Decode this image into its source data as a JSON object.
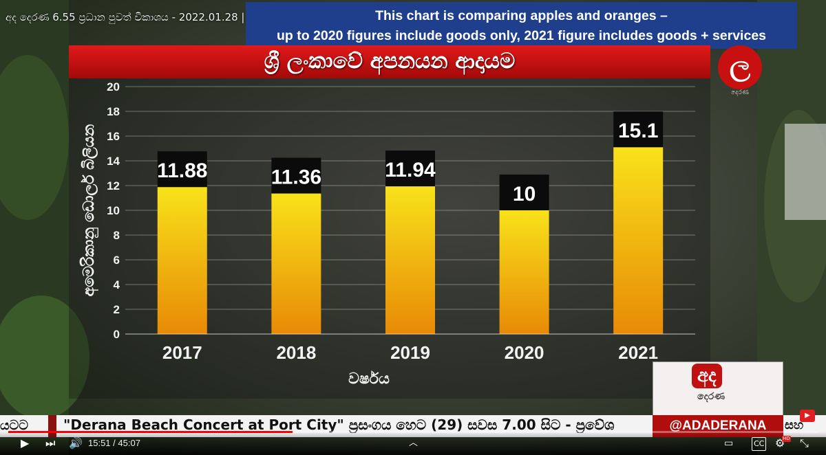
{
  "video": {
    "title": "අද දෙරණ 6.55 ප්‍රධාන පුවත් විකාශය - 2022.01.28 |",
    "time_current": "15:51",
    "time_separator": "/",
    "time_total": "45:07",
    "progress_fraction": 0.351
  },
  "note": {
    "line1": "This chart is comparing apples and oranges –",
    "line2": "up to 2020 figures include goods only, 2021 figure includes goods + services"
  },
  "logo": {
    "glyph": "ල",
    "sub_text": "දෙරණ"
  },
  "chart_data": {
    "type": "bar",
    "title": "ශ්‍රී ලංකාවේ අපනයන ආදායම",
    "xlabel": "වර්ෂය",
    "ylabel": "අමෙරිකානු ඩොලර් බිලියන",
    "categories": [
      "2017",
      "2018",
      "2019",
      "2020",
      "2021"
    ],
    "values": [
      11.88,
      11.36,
      11.94,
      10,
      15.1
    ],
    "data_labels": [
      "11.88",
      "11.36",
      "11.94",
      "10",
      "15.1"
    ],
    "ylim": [
      0,
      20
    ],
    "yticks": [
      "0",
      "2",
      "4",
      "6",
      "8",
      "10",
      "12",
      "14",
      "16",
      "18",
      "20"
    ],
    "grid": true,
    "colors": {
      "bar_top": "#f8e21a",
      "bar_bottom": "#e88a06",
      "label_bg": "#0b0b0b"
    }
  },
  "ticker": {
    "left_text": "යටට",
    "text": "\"Derana Beach Concert at Port City\" ප්‍රසංගය හෙට (29) සවස 7.00 සිට - ප්‍රවේශ",
    "right_text": "සහ",
    "handle": "@ADADERANA",
    "logo_top": "අද",
    "logo_bottom": "දෙරණ"
  },
  "icons": {
    "play": "play-icon",
    "next": "next-icon",
    "volume": "volume-icon",
    "chevron": "chevron-up-icon",
    "miniplayer": "miniplayer-icon",
    "captions": "captions-icon",
    "settings": "settings-icon",
    "fullscreen": "exit-fullscreen-icon"
  },
  "controls": {
    "captions_label": "CC",
    "hd_badge": "HD"
  }
}
